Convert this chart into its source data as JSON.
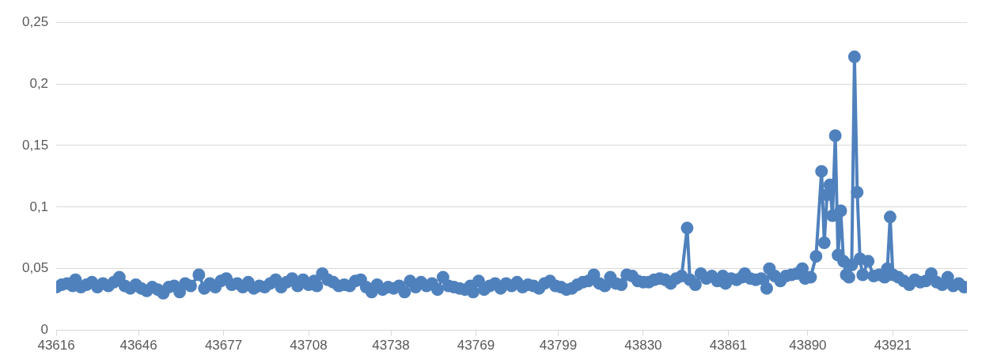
{
  "chart_data": {
    "type": "line",
    "x": [
      43616,
      43618,
      43620,
      43622,
      43623,
      43625,
      43627,
      43629,
      43631,
      43633,
      43635,
      43637,
      43639,
      43641,
      43643,
      43645,
      43647,
      43649,
      43651,
      43653,
      43655,
      43657,
      43659,
      43661,
      43663,
      43665,
      43668,
      43670,
      43672,
      43674,
      43676,
      43678,
      43680,
      43682,
      43684,
      43686,
      43688,
      43690,
      43692,
      43694,
      43696,
      43698,
      43700,
      43702,
      43704,
      43706,
      43708,
      43710,
      43711,
      43713,
      43715,
      43717,
      43719,
      43721,
      43723,
      43725,
      43727,
      43729,
      43731,
      43733,
      43735,
      43737,
      43739,
      43741,
      43743,
      43745,
      43747,
      43749,
      43751,
      43753,
      43755,
      43757,
      43759,
      43761,
      43763,
      43765,
      43767,
      43768,
      43770,
      43772,
      43774,
      43776,
      43778,
      43780,
      43782,
      43784,
      43786,
      43788,
      43790,
      43792,
      43794,
      43796,
      43798,
      43800,
      43802,
      43804,
      43806,
      43808,
      43810,
      43812,
      43814,
      43816,
      43818,
      43820,
      43822,
      43824,
      43826,
      43828,
      43830,
      43832,
      43834,
      43836,
      43838,
      43840,
      43842,
      43844,
      43846,
      43847,
      43849,
      43851,
      43853,
      43855,
      43857,
      43859,
      43860,
      43862,
      43864,
      43866,
      43867,
      43869,
      43871,
      43873,
      43875,
      43876,
      43878,
      43880,
      43882,
      43884,
      43886,
      43888,
      43889,
      43891,
      43893,
      43895,
      43896,
      43897,
      43898,
      43899,
      43900,
      43901,
      43902,
      43903,
      43904,
      43905,
      43906,
      43907,
      43908,
      43909,
      43910,
      43912,
      43914,
      43916,
      43918,
      43919,
      43920,
      43921,
      43923,
      43925,
      43927,
      43929,
      43931,
      43933,
      43935,
      43937,
      43939,
      43941,
      43943,
      43945,
      43947
    ],
    "series": [
      {
        "color": "#4f81bd",
        "values": [
          0.035,
          0.037,
          0.038,
          0.036,
          0.041,
          0.035,
          0.037,
          0.039,
          0.035,
          0.038,
          0.036,
          0.039,
          0.043,
          0.036,
          0.034,
          0.037,
          0.034,
          0.032,
          0.035,
          0.033,
          0.03,
          0.035,
          0.036,
          0.031,
          0.038,
          0.036,
          0.045,
          0.034,
          0.038,
          0.035,
          0.04,
          0.042,
          0.037,
          0.038,
          0.035,
          0.039,
          0.034,
          0.036,
          0.035,
          0.038,
          0.041,
          0.035,
          0.039,
          0.042,
          0.036,
          0.041,
          0.037,
          0.04,
          0.036,
          0.046,
          0.041,
          0.039,
          0.036,
          0.037,
          0.036,
          0.04,
          0.041,
          0.035,
          0.031,
          0.037,
          0.033,
          0.035,
          0.034,
          0.036,
          0.031,
          0.04,
          0.035,
          0.039,
          0.036,
          0.038,
          0.033,
          0.043,
          0.036,
          0.035,
          0.034,
          0.033,
          0.036,
          0.031,
          0.04,
          0.033,
          0.036,
          0.038,
          0.034,
          0.038,
          0.036,
          0.039,
          0.035,
          0.037,
          0.036,
          0.034,
          0.038,
          0.04,
          0.036,
          0.035,
          0.033,
          0.034,
          0.037,
          0.039,
          0.04,
          0.045,
          0.038,
          0.036,
          0.043,
          0.038,
          0.037,
          0.045,
          0.044,
          0.04,
          0.039,
          0.039,
          0.041,
          0.042,
          0.041,
          0.038,
          0.042,
          0.044,
          0.083,
          0.041,
          0.037,
          0.046,
          0.042,
          0.044,
          0.04,
          0.044,
          0.038,
          0.042,
          0.041,
          0.043,
          0.046,
          0.042,
          0.041,
          0.042,
          0.034,
          0.05,
          0.044,
          0.04,
          0.044,
          0.045,
          0.046,
          0.05,
          0.042,
          0.043,
          0.06,
          0.129,
          0.071,
          0.11,
          0.118,
          0.093,
          0.158,
          0.061,
          0.097,
          0.056,
          0.045,
          0.043,
          0.053,
          0.222,
          0.112,
          0.058,
          0.045,
          0.056,
          0.044,
          0.045,
          0.043,
          0.05,
          0.092,
          0.045,
          0.043,
          0.04,
          0.037,
          0.041,
          0.039,
          0.04,
          0.046,
          0.039,
          0.037,
          0.043,
          0.036,
          0.038,
          0.035
        ]
      }
    ],
    "xlim": [
      43616,
      43948
    ],
    "xticks": [
      43616,
      43646,
      43677,
      43708,
      43738,
      43769,
      43799,
      43830,
      43861,
      43890,
      43921
    ],
    "ylim": [
      0,
      0.25
    ],
    "yticks": [
      0,
      {
        "value": 0.05,
        "label": "0,05"
      },
      {
        "value": 0.1,
        "label": "0,1"
      },
      {
        "value": 0.15,
        "label": "0,15"
      },
      {
        "value": 0.2,
        "label": "0,2"
      },
      {
        "value": 0.25,
        "label": "0,25"
      }
    ],
    "grid": "y",
    "marker": "circle",
    "line_style": "solid",
    "legend": false
  }
}
